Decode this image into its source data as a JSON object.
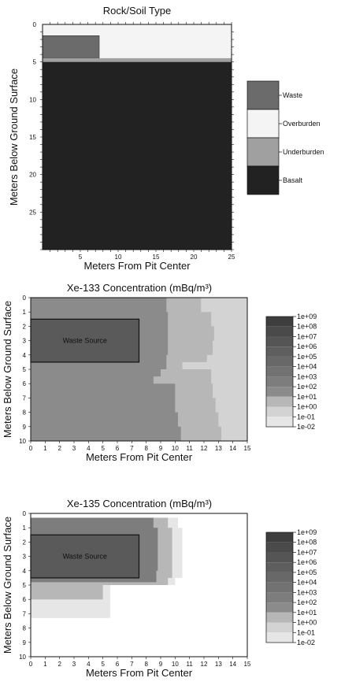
{
  "chart_data": [
    {
      "type": "heatmap",
      "title": "Rock/Soil Type",
      "xlabel": "Meters From Pit Center",
      "ylabel": "Meters Below Ground Surface",
      "xlim": [
        0,
        25
      ],
      "ylim": [
        0,
        30
      ],
      "x_ticks": [
        5,
        10,
        15,
        20,
        25
      ],
      "y_ticks": [
        0,
        5,
        10,
        15,
        20,
        25
      ],
      "legend": {
        "placement": "right",
        "entries": [
          {
            "label": "Waste",
            "color": "#6b6b6b"
          },
          {
            "label": "Overburden",
            "color": "#f4f4f4"
          },
          {
            "label": "Underburden",
            "color": "#a0a0a0"
          },
          {
            "label": "Basalt",
            "color": "#222222"
          }
        ]
      },
      "regions": [
        {
          "type": "Overburden",
          "x": [
            0,
            25
          ],
          "depth": [
            0,
            4.5
          ]
        },
        {
          "type": "Waste",
          "x": [
            0,
            7.5
          ],
          "depth": [
            1.5,
            4.5
          ]
        },
        {
          "type": "Underburden",
          "x": [
            0,
            25
          ],
          "depth": [
            4.5,
            5
          ]
        },
        {
          "type": "Basalt",
          "x": [
            0,
            25
          ],
          "depth": [
            5,
            30
          ]
        }
      ]
    },
    {
      "type": "heatmap",
      "title": "Xe-133 Concentration (mBq/m³)",
      "xlabel": "Meters From Pit Center",
      "ylabel": "Meters Below Ground Surface",
      "xlim": [
        0,
        15
      ],
      "ylim": [
        0,
        10
      ],
      "x_ticks": [
        0,
        1,
        2,
        3,
        4,
        5,
        6,
        7,
        8,
        9,
        10,
        11,
        12,
        13,
        14,
        15
      ],
      "y_ticks": [
        0,
        1,
        2,
        3,
        4,
        5,
        6,
        7,
        8,
        9,
        10
      ],
      "annotation": "Waste Source",
      "waste_source": {
        "x": [
          0,
          7.5
        ],
        "depth": [
          1.5,
          4.5
        ]
      },
      "legend": {
        "placement": "right",
        "levels": [
          "1e+09",
          "1e+08",
          "1e+07",
          "1e+06",
          "1e+05",
          "1e+04",
          "1e+03",
          "1e+02",
          "1e+01",
          "1e+00",
          "1e-01",
          "1e-02"
        ]
      },
      "contours": [
        {
          "level": "1e+02",
          "x_extent_by_depth": [
            [
              0,
              9.4
            ],
            [
              1,
              9.5
            ],
            [
              2,
              9.5
            ],
            [
              3,
              9.5
            ],
            [
              4,
              9.4
            ],
            [
              5,
              9.0
            ],
            [
              5.5,
              8.5
            ],
            [
              6,
              10.0
            ],
            [
              7,
              10.0
            ],
            [
              8,
              10.2
            ],
            [
              9,
              10.4
            ],
            [
              10,
              10.5
            ]
          ]
        },
        {
          "level": "1e+01",
          "x_extent_by_depth": [
            [
              0,
              11.8
            ],
            [
              1,
              12.5
            ],
            [
              2,
              12.7
            ],
            [
              3,
              12.6
            ],
            [
              4,
              12.2
            ],
            [
              4.5,
              10.5
            ],
            [
              5,
              12.5
            ],
            [
              6,
              12.6
            ],
            [
              7,
              12.8
            ],
            [
              8,
              13.0
            ],
            [
              9,
              13.2
            ],
            [
              10,
              13.3
            ]
          ]
        },
        {
          "level": "1e+00",
          "x_extent_by_depth": [
            [
              0,
              15
            ],
            [
              10,
              15
            ]
          ]
        }
      ]
    },
    {
      "type": "heatmap",
      "title": "Xe-135 Concentration (mBq/m³)",
      "xlabel": "Meters From Pit Center",
      "ylabel": "Meters Below Ground Surface",
      "xlim": [
        0,
        15
      ],
      "ylim": [
        0,
        10
      ],
      "x_ticks": [
        0,
        1,
        2,
        3,
        4,
        5,
        6,
        7,
        8,
        9,
        10,
        11,
        12,
        13,
        14,
        15
      ],
      "y_ticks": [
        0,
        1,
        2,
        3,
        4,
        5,
        6,
        7,
        8,
        9,
        10
      ],
      "annotation": "Waste Source",
      "waste_source": {
        "x": [
          0,
          7.5
        ],
        "depth": [
          1.5,
          4.5
        ]
      },
      "legend": {
        "placement": "right",
        "levels": [
          "1e+09",
          "1e+08",
          "1e+07",
          "1e+06",
          "1e+05",
          "1e+04",
          "1e+03",
          "1e+02",
          "1e+01",
          "1e+00",
          "1e-01",
          "1e-02"
        ]
      },
      "contours": [
        {
          "level": "1e+03",
          "x_extent_by_depth": [
            [
              0.3,
              8.5
            ],
            [
              1,
              8.8
            ],
            [
              2,
              8.8
            ],
            [
              3,
              8.8
            ],
            [
              4,
              8.7
            ],
            [
              4.8,
              8.0
            ]
          ]
        },
        {
          "level": "1e+01",
          "x_extent_by_depth": [
            [
              0.3,
              9.5
            ],
            [
              1,
              9.8
            ],
            [
              3,
              9.8
            ],
            [
              4.5,
              9.5
            ],
            [
              5,
              5.0
            ],
            [
              6,
              5.0
            ]
          ]
        },
        {
          "level": "1e-01",
          "x_extent_by_depth": [
            [
              0.3,
              10.2
            ],
            [
              1,
              10.5
            ],
            [
              3,
              10.5
            ],
            [
              4.5,
              10.0
            ],
            [
              5,
              5.5
            ],
            [
              7.3,
              5.5
            ]
          ]
        }
      ]
    }
  ]
}
